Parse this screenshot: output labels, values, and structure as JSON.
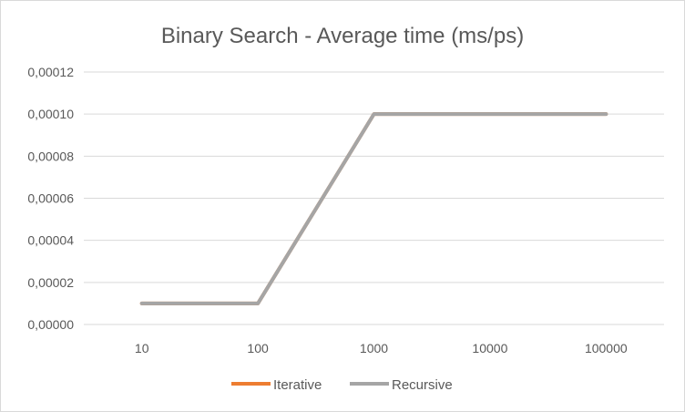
{
  "chart_data": {
    "type": "line",
    "title": "Binary Search - Average time (ms/ps)",
    "xlabel": "",
    "ylabel": "",
    "categories": [
      "10",
      "100",
      "1000",
      "10000",
      "100000"
    ],
    "ylim": [
      0,
      0.00012
    ],
    "yticks": [
      "0,00000",
      "0,00002",
      "0,00004",
      "0,00006",
      "0,00008",
      "0,00010",
      "0,00012"
    ],
    "grid": true,
    "legend_position": "bottom",
    "series": [
      {
        "name": "Iterative",
        "color": "#ED7D31",
        "values": [
          1e-05,
          1e-05,
          0.0001,
          0.0001,
          0.0001
        ]
      },
      {
        "name": "Recursive",
        "color": "#A5A5A5",
        "values": [
          1e-05,
          1e-05,
          0.0001,
          0.0001,
          0.0001
        ]
      }
    ]
  }
}
